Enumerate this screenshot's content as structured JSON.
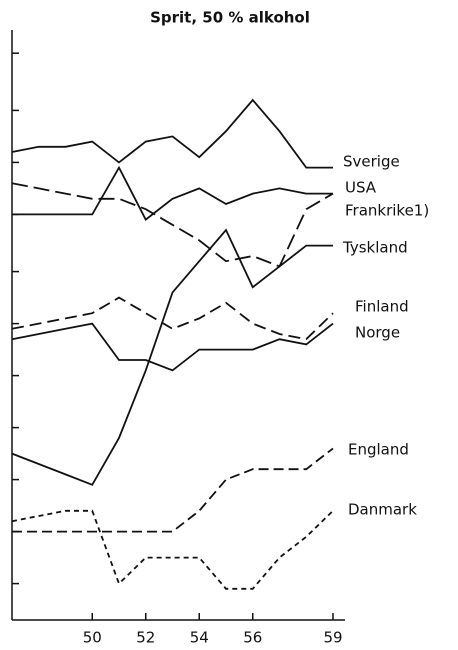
{
  "chart_data": {
    "type": "line",
    "title": "Sprit, 50 % alkohol",
    "x": [
      47,
      48,
      49,
      50,
      51,
      52,
      53,
      54,
      55,
      56,
      57,
      58,
      59
    ],
    "xlim": [
      47,
      59
    ],
    "xticks": [
      50,
      52,
      54,
      56,
      59
    ],
    "ylim": [
      0,
      11.2
    ],
    "yticks": [
      0.7,
      1.7,
      2.7,
      3.7,
      4.7,
      5.7,
      6.7,
      7.8,
      8.8,
      9.8,
      10.9
    ],
    "series": [
      {
        "name": "Sverige",
        "color": "#111111",
        "values": [
          9.0,
          9.1,
          9.1,
          9.2,
          8.8,
          9.2,
          9.3,
          8.9,
          9.4,
          10.0,
          9.4,
          8.7,
          8.7
        ]
      },
      {
        "name": "USA",
        "color": "#111111",
        "values": [
          7.8,
          7.8,
          7.8,
          7.8,
          8.7,
          7.7,
          8.1,
          8.3,
          8.0,
          8.2,
          8.3,
          8.2,
          8.2
        ]
      },
      {
        "name": "Frankrike1)",
        "color": "#111111",
        "values": [
          8.4,
          8.3,
          8.2,
          8.1,
          8.1,
          7.9,
          7.6,
          7.3,
          6.9,
          7.0,
          6.8,
          7.9,
          8.2
        ]
      },
      {
        "name": "Tyskland",
        "color": "#111111",
        "values": [
          3.2,
          3.0,
          2.8,
          2.6,
          3.5,
          4.8,
          6.3,
          6.9,
          7.5,
          6.4,
          6.8,
          7.2,
          7.2
        ]
      },
      {
        "name": "Finland",
        "color": "#111111",
        "values": [
          5.6,
          5.7,
          5.8,
          5.9,
          6.2,
          5.9,
          5.6,
          5.8,
          6.1,
          5.7,
          5.5,
          5.4,
          5.9
        ]
      },
      {
        "name": "Norge",
        "color": "#111111",
        "values": [
          5.4,
          5.5,
          5.6,
          5.7,
          5.0,
          5.0,
          4.8,
          5.2,
          5.2,
          5.2,
          5.4,
          5.3,
          5.7
        ]
      },
      {
        "name": "England",
        "color": "#111111",
        "values": [
          1.7,
          1.7,
          1.7,
          1.7,
          1.7,
          1.7,
          1.7,
          2.1,
          2.7,
          2.9,
          2.9,
          2.9,
          3.3
        ]
      },
      {
        "name": "Danmark",
        "color": "#111111",
        "values": [
          1.9,
          2.0,
          2.1,
          2.1,
          0.7,
          1.2,
          1.2,
          1.2,
          0.6,
          0.6,
          1.2,
          1.6,
          2.1
        ]
      }
    ]
  }
}
